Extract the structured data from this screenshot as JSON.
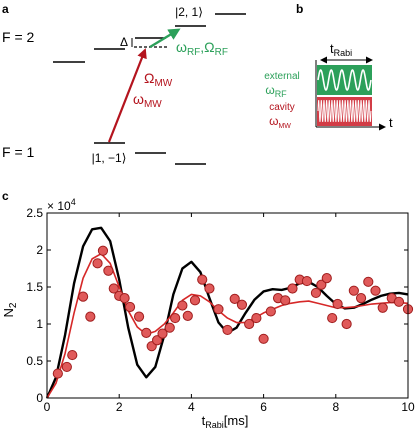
{
  "panel_a": {
    "panel_label": "a",
    "f2_label": "F = 2",
    "f1_label": "F = 1",
    "state_upper": "|2, 1⟩",
    "state_lower": "|1, −1⟩",
    "delta_label": "Δ",
    "omega_mw_coupling": "Ω",
    "omega_mw_coupling_sub": "MW",
    "omega_mw_freq": "ω",
    "omega_mw_freq_sub": "MW",
    "rf_label_omega": "ω",
    "rf_label_omega_sub": "RF",
    "rf_label_sep": ",",
    "rf_label_Omega": "Ω",
    "rf_label_Omega_sub": "RF",
    "colors": {
      "mw": "#b4141e",
      "rf": "#2ca05a"
    }
  },
  "panel_b": {
    "panel_label": "b",
    "t_rabi_main": "t",
    "t_rabi_sub": "Rabi",
    "external_label": "external",
    "external_omega": "ω",
    "external_omega_sub": "RF",
    "cavity_label": "cavity",
    "cavity_omega": "ω",
    "cavity_omega_sub": "MW",
    "time_axis_label": "t",
    "colors": {
      "green_box": "#2ca05a",
      "red_box": "#d23c46"
    }
  },
  "panel_c": {
    "panel_label": "c"
  },
  "chart_data": {
    "type": "line",
    "xlabel_main": "t",
    "xlabel_sub": "Rabi",
    "xlabel_unit": "[ms]",
    "ylabel_main": "N",
    "ylabel_sub": "2",
    "y_multiplier": "× 10",
    "y_multiplier_exp": "4",
    "xlim": [
      0,
      10
    ],
    "ylim": [
      0,
      2.5
    ],
    "x_ticks": [
      0,
      2,
      4,
      6,
      8,
      10
    ],
    "y_ticks": [
      0,
      0.5,
      1,
      1.5,
      2,
      2.5
    ],
    "x_tick_labels": [
      "0",
      "2",
      "4",
      "6",
      "8",
      "10"
    ],
    "y_tick_labels": [
      "0",
      "0.5",
      "1",
      "1.5",
      "2",
      "2.5"
    ],
    "series": [
      {
        "style": "line",
        "color": "#000000",
        "x": [
          0,
          0.25,
          0.5,
          0.75,
          1.0,
          1.25,
          1.5,
          1.75,
          2.0,
          2.25,
          2.5,
          2.75,
          3.0,
          3.25,
          3.5,
          3.75,
          4.0,
          4.25,
          4.5,
          4.75,
          5.0,
          5.25,
          5.5,
          5.75,
          6.0,
          6.25,
          6.5,
          6.75,
          7.0,
          7.25,
          7.5,
          7.75,
          8.0,
          8.25,
          8.5,
          8.75,
          9.0,
          9.25,
          9.5,
          9.75,
          10.0
        ],
        "y": [
          0,
          0.28,
          0.85,
          1.55,
          2.05,
          2.28,
          2.3,
          2.12,
          1.6,
          0.95,
          0.45,
          0.28,
          0.42,
          0.85,
          1.4,
          1.75,
          1.84,
          1.7,
          1.35,
          1.02,
          0.88,
          0.95,
          1.15,
          1.33,
          1.44,
          1.47,
          1.46,
          1.49,
          1.55,
          1.57,
          1.5,
          1.38,
          1.27,
          1.21,
          1.22,
          1.27,
          1.33,
          1.38,
          1.41,
          1.42,
          1.4
        ]
      },
      {
        "style": "line",
        "color": "#d62828",
        "x": [
          0,
          0.25,
          0.5,
          0.75,
          1.0,
          1.25,
          1.5,
          1.75,
          2.0,
          2.25,
          2.5,
          2.75,
          3.0,
          3.25,
          3.5,
          3.75,
          4.0,
          4.25,
          4.5,
          4.75,
          5.0,
          5.25,
          5.5,
          5.75,
          6.0,
          6.25,
          6.5,
          6.75,
          7.0,
          7.25,
          7.5,
          7.75,
          8.0,
          8.25,
          8.5,
          8.75,
          9.0,
          9.25,
          9.5,
          9.75,
          10.0
        ],
        "y": [
          0,
          0.2,
          0.6,
          1.15,
          1.62,
          1.88,
          1.95,
          1.82,
          1.5,
          1.18,
          0.96,
          0.86,
          0.9,
          1.0,
          1.15,
          1.32,
          1.4,
          1.38,
          1.3,
          1.18,
          1.08,
          1.02,
          1.02,
          1.08,
          1.15,
          1.2,
          1.25,
          1.28,
          1.3,
          1.31,
          1.28,
          1.25,
          1.22,
          1.22,
          1.23,
          1.25,
          1.27,
          1.28,
          1.29,
          1.29,
          1.28
        ]
      },
      {
        "style": "markers",
        "color": "#e05a5a",
        "x": [
          0.3,
          0.55,
          0.7,
          1.0,
          1.2,
          1.4,
          1.55,
          1.7,
          1.85,
          2.0,
          2.15,
          2.3,
          2.55,
          2.75,
          2.9,
          3.05,
          3.2,
          3.4,
          3.55,
          3.75,
          3.9,
          4.1,
          4.3,
          4.5,
          4.75,
          5.0,
          5.2,
          5.4,
          5.6,
          5.8,
          6.0,
          6.2,
          6.4,
          6.6,
          6.8,
          7.0,
          7.2,
          7.45,
          7.6,
          7.75,
          7.9,
          8.05,
          8.3,
          8.5,
          8.7,
          8.9,
          9.1,
          9.3,
          9.55,
          9.75,
          10.0
        ],
        "y": [
          0.33,
          0.42,
          0.58,
          1.37,
          1.1,
          1.82,
          1.99,
          1.72,
          1.48,
          1.38,
          1.35,
          1.23,
          1.1,
          0.88,
          0.7,
          0.78,
          0.87,
          0.95,
          1.08,
          1.25,
          1.11,
          1.32,
          1.6,
          1.48,
          1.2,
          0.92,
          1.34,
          1.26,
          1.0,
          1.08,
          0.8,
          1.17,
          1.35,
          1.32,
          1.48,
          1.6,
          1.58,
          1.42,
          1.53,
          1.62,
          1.08,
          1.27,
          1.0,
          1.45,
          1.35,
          1.57,
          1.45,
          1.22,
          1.35,
          1.3,
          1.2
        ]
      }
    ]
  }
}
